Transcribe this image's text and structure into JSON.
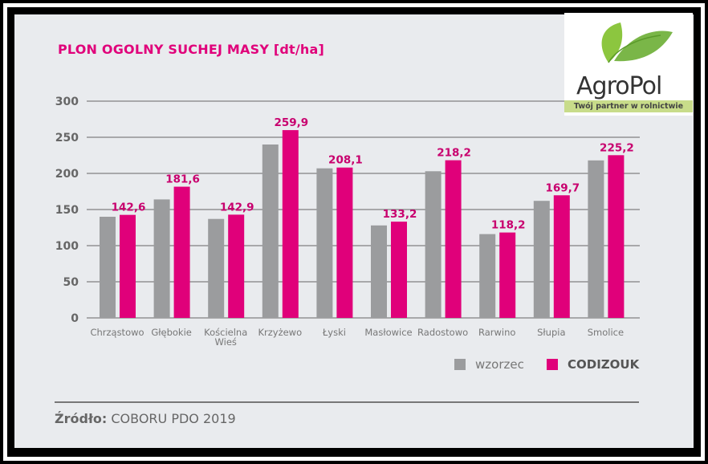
{
  "chart_data": {
    "type": "bar",
    "title": "PLON OGOLNY SUCHEJ MASY [dt/ha]",
    "categories": [
      "Chrząstowo",
      "Głębokie",
      "Kościelna\nWieś",
      "Krzyżewo",
      "Łyski",
      "Masłowice",
      "Radostowo",
      "Rarwino",
      "Słupia",
      "Smolice"
    ],
    "series": [
      {
        "name": "wzorzec",
        "color": "#9b9c9e",
        "values": [
          140,
          164,
          137,
          240,
          207,
          128,
          203,
          116,
          162,
          218
        ]
      },
      {
        "name": "CODIZOUK",
        "color": "#e0007a",
        "values": [
          142.6,
          181.6,
          142.9,
          259.9,
          208.1,
          133.2,
          218.2,
          118.2,
          169.7,
          225.2
        ],
        "labels": [
          "142,6",
          "181,6",
          "142,9",
          "259,9",
          "208,1",
          "133,2",
          "218,2",
          "118,2",
          "169,7",
          "225,2"
        ]
      }
    ],
    "yticks": [
      0,
      50,
      100,
      150,
      200,
      250,
      300
    ],
    "ylim": [
      0,
      300
    ],
    "grid": true,
    "legend": "bottom-right",
    "xlabel": "",
    "ylabel": ""
  },
  "logo": {
    "name": "AgroPol",
    "tagline": "Twój partner w rolnictwie"
  },
  "source": {
    "label": "Źródło:",
    "text": "COBORU PDO 2019"
  }
}
